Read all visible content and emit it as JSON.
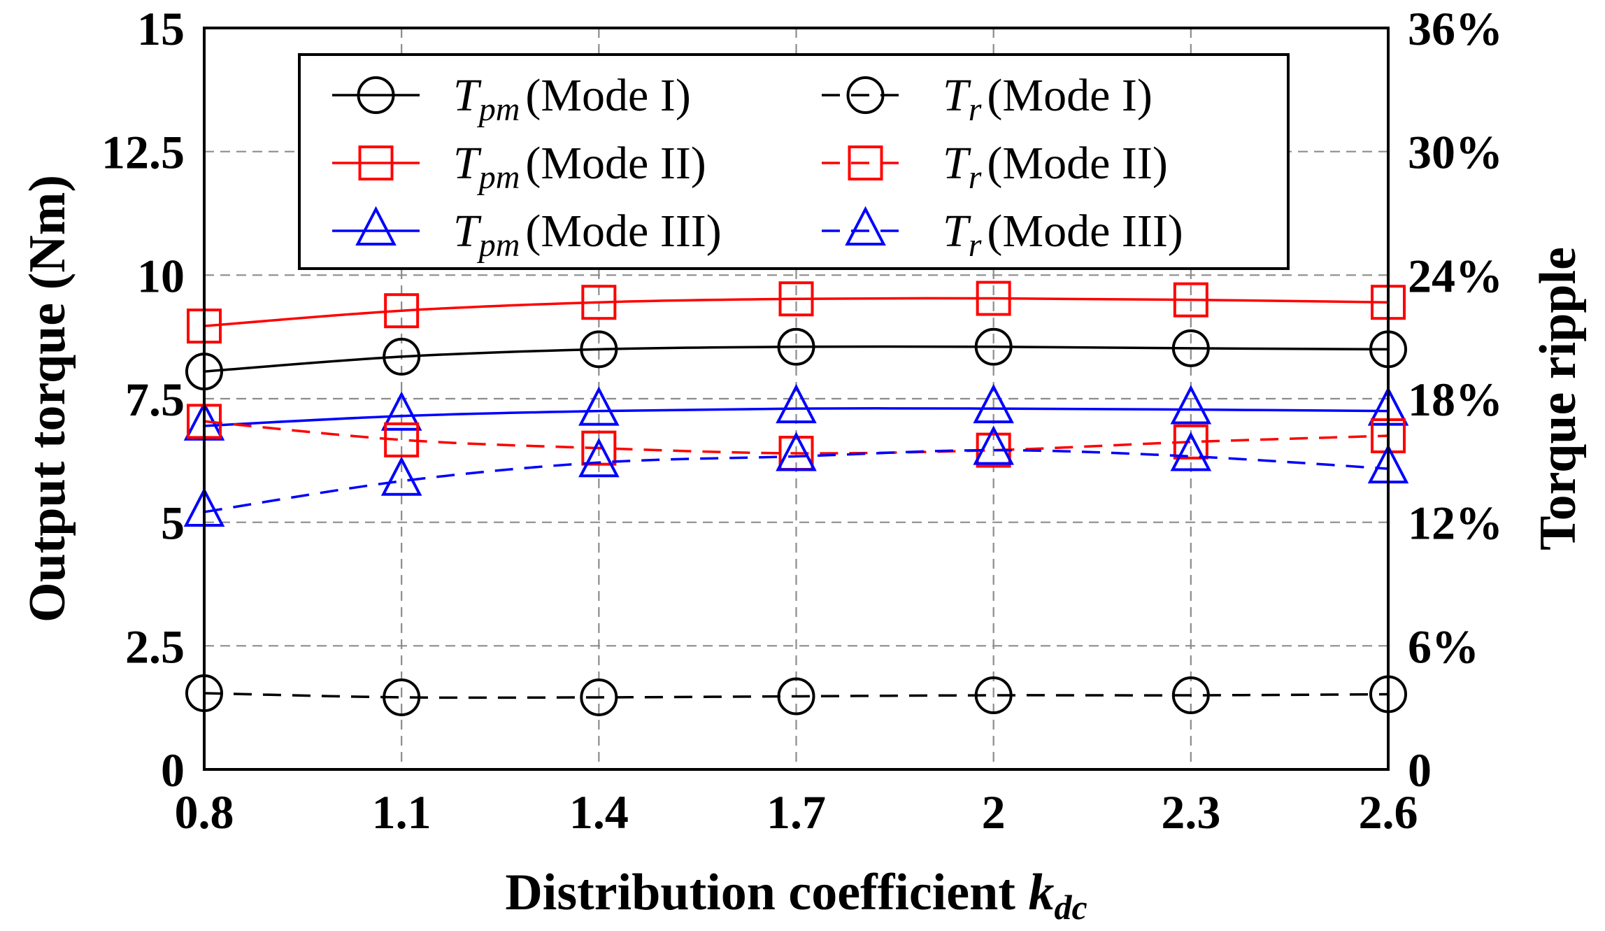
{
  "chart_data": {
    "type": "line",
    "x": [
      0.8,
      1.1,
      1.4,
      1.7,
      2,
      2.3,
      2.6
    ],
    "x_tick_labels": [
      "0.8",
      "1.1",
      "1.4",
      "1.7",
      "2",
      "2.3",
      "2.6"
    ],
    "xlabel": {
      "main": "Distribution coefficient ",
      "var": "k",
      "sub": "dc"
    },
    "ylabel_left": "Output torque (Nm)",
    "ylabel_right": "Torque ripple",
    "ylim_left": [
      0,
      15
    ],
    "ylim_right": [
      0,
      36
    ],
    "y_left_ticks": [
      {
        "value": 0,
        "label": "0"
      },
      {
        "value": 2.5,
        "label": "2.5"
      },
      {
        "value": 5,
        "label": "5"
      },
      {
        "value": 7.5,
        "label": "7.5"
      },
      {
        "value": 10,
        "label": "10"
      },
      {
        "value": 12.5,
        "label": "12.5"
      },
      {
        "value": 15,
        "label": "15"
      }
    ],
    "y_right_ticks": [
      {
        "value": 0,
        "label": "0"
      },
      {
        "value": 6,
        "label": "6%"
      },
      {
        "value": 12,
        "label": "12%"
      },
      {
        "value": 18,
        "label": "18%"
      },
      {
        "value": 24,
        "label": "24%"
      },
      {
        "value": 30,
        "label": "30%"
      },
      {
        "value": 36,
        "label": "36%"
      }
    ],
    "grid": true,
    "legend_position": "top",
    "series": [
      {
        "id": "tpm-mode1",
        "sym": "T",
        "sub": "pm",
        "label": "(Mode I)",
        "axis": "left",
        "marker": "circle",
        "dashed": false,
        "color": "#000000",
        "values": [
          8.05,
          8.35,
          8.5,
          8.55,
          8.55,
          8.52,
          8.5
        ]
      },
      {
        "id": "tpm-mode2",
        "sym": "T",
        "sub": "pm",
        "label": "(Mode II)",
        "axis": "left",
        "marker": "square",
        "dashed": false,
        "color": "#ff0000",
        "values": [
          8.97,
          9.28,
          9.45,
          9.52,
          9.53,
          9.5,
          9.45
        ]
      },
      {
        "id": "tpm-mode3",
        "sym": "T",
        "sub": "pm",
        "label": "(Mode III)",
        "axis": "left",
        "marker": "triangle",
        "dashed": false,
        "color": "#0000ff",
        "values": [
          6.95,
          7.15,
          7.25,
          7.3,
          7.3,
          7.28,
          7.25
        ]
      },
      {
        "id": "tr-mode1",
        "sym": "T",
        "sub": "r",
        "label": "(Mode I)",
        "axis": "right",
        "marker": "circle",
        "dashed": true,
        "color": "#000000",
        "values": [
          3.7,
          3.5,
          3.5,
          3.55,
          3.6,
          3.6,
          3.65
        ]
      },
      {
        "id": "tr-mode2",
        "sym": "T",
        "sub": "r",
        "label": "(Mode II)",
        "axis": "right",
        "marker": "square",
        "dashed": true,
        "color": "#ff0000",
        "values": [
          16.9,
          16.0,
          15.6,
          15.35,
          15.5,
          15.9,
          16.2
        ]
      },
      {
        "id": "tr-mode3",
        "sym": "T",
        "sub": "r",
        "label": "(Mode III)",
        "axis": "right",
        "marker": "triangle",
        "dashed": true,
        "color": "#0000ff",
        "values": [
          12.5,
          14.0,
          14.9,
          15.2,
          15.5,
          15.2,
          14.6
        ]
      }
    ]
  }
}
